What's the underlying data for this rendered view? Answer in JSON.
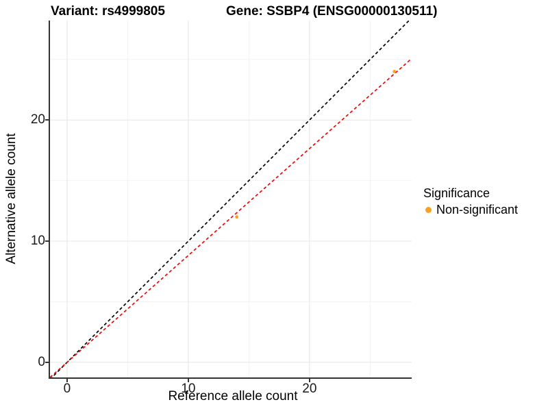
{
  "titles": {
    "left": "Variant: rs4999805",
    "right": "Gene: SSBP4 (ENSG00000130511)"
  },
  "legend": {
    "title": "Significance",
    "items": [
      {
        "label": "Non-significant",
        "color": "#F9A11B",
        "marker": "dot"
      }
    ]
  },
  "colors": {
    "point": "#F9A11B",
    "identity_line": "#000000",
    "regression_line": "#FF0000",
    "grid_major": "#E5E5E5",
    "grid_minor": "#F2F2F2",
    "axis": "#333333"
  },
  "chart_data": {
    "type": "scatter",
    "title": "Variant: rs4999805 — Gene: SSBP4 (ENSG00000130511)",
    "xlabel": "Reference allele count",
    "ylabel": "Alternative allele count",
    "xlim": [
      -1.41,
      28.43
    ],
    "ylim": [
      -1.25,
      28.21
    ],
    "x_major_ticks": [
      0,
      10,
      20
    ],
    "y_major_ticks": [
      0,
      10,
      20
    ],
    "x_minor_ticks": [
      5,
      15,
      25
    ],
    "y_minor_ticks": [
      5,
      15,
      25
    ],
    "grid": true,
    "legend_position": "right",
    "series": [
      {
        "name": "Non-significant",
        "color": "#F9A11B",
        "points": [
          {
            "x": 14,
            "y": 12
          },
          {
            "x": 27,
            "y": 24
          }
        ]
      }
    ],
    "lines": [
      {
        "name": "identity-line",
        "slope": 1.0,
        "intercept": 0,
        "color": "#000000",
        "style": "dashed"
      },
      {
        "name": "regression-line",
        "slope": 0.882,
        "intercept": 0,
        "color": "#FF0000",
        "style": "dashed"
      }
    ]
  }
}
